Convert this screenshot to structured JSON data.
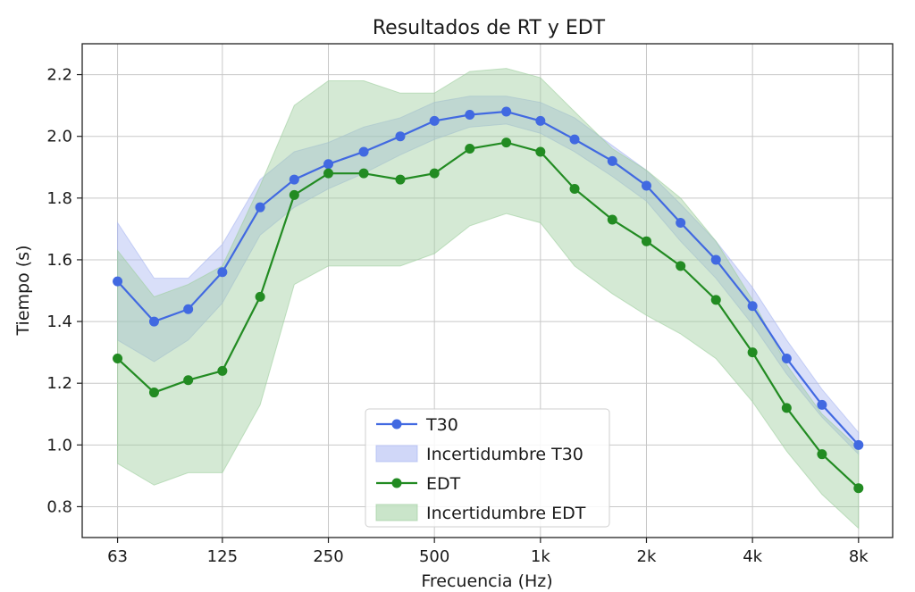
{
  "chart_data": {
    "type": "line",
    "title": "Resultados de RT y EDT",
    "xlabel": "Frecuencia (Hz)",
    "ylabel": "Tiempo (s)",
    "x_scale": "log2",
    "x_tick_labels": [
      "63",
      "125",
      "250",
      "500",
      "1k",
      "2k",
      "4k",
      "8k"
    ],
    "x_tick_values": [
      63,
      125,
      250,
      500,
      1000,
      2000,
      4000,
      8000
    ],
    "xlim": [
      50,
      10000
    ],
    "ylim": [
      0.7,
      2.3
    ],
    "y_ticks": [
      0.8,
      1.0,
      1.2,
      1.4,
      1.6,
      1.8,
      2.0,
      2.2
    ],
    "y_tick_labels": [
      "0.8",
      "1.0",
      "1.2",
      "1.4",
      "1.6",
      "1.8",
      "2.0",
      "2.2"
    ],
    "grid": true,
    "legend_position": "bottom-center",
    "x": [
      63,
      80,
      100,
      125,
      160,
      200,
      250,
      315,
      400,
      500,
      630,
      800,
      1000,
      1250,
      1600,
      2000,
      2500,
      3150,
      4000,
      5000,
      6300,
      8000
    ],
    "series": [
      {
        "name": "T30",
        "color": "#4169e1",
        "values": [
          1.53,
          1.4,
          1.44,
          1.56,
          1.77,
          1.86,
          1.91,
          1.95,
          2.0,
          2.05,
          2.07,
          2.08,
          2.05,
          1.99,
          1.92,
          1.84,
          1.72,
          1.6,
          1.45,
          1.28,
          1.13,
          1.0
        ]
      },
      {
        "name": "EDT",
        "color": "#228b22",
        "values": [
          1.28,
          1.17,
          1.21,
          1.24,
          1.48,
          1.81,
          1.88,
          1.88,
          1.86,
          1.88,
          1.96,
          1.98,
          1.95,
          1.83,
          1.73,
          1.66,
          1.58,
          1.47,
          1.3,
          1.12,
          0.97,
          0.86
        ]
      }
    ],
    "bands": [
      {
        "name": "Incertidumbre T30",
        "color": "#aab7f2",
        "lower": [
          1.34,
          1.27,
          1.34,
          1.46,
          1.68,
          1.77,
          1.83,
          1.88,
          1.94,
          1.99,
          2.03,
          2.04,
          2.01,
          1.95,
          1.87,
          1.79,
          1.66,
          1.54,
          1.39,
          1.23,
          1.09,
          0.97
        ],
        "upper": [
          1.72,
          1.54,
          1.54,
          1.65,
          1.86,
          1.95,
          1.98,
          2.03,
          2.06,
          2.11,
          2.13,
          2.13,
          2.11,
          2.06,
          1.97,
          1.89,
          1.78,
          1.66,
          1.51,
          1.34,
          1.18,
          1.04
        ]
      },
      {
        "name": "Incertidumbre EDT",
        "color": "#9fcf9f",
        "lower": [
          0.94,
          0.87,
          0.91,
          0.91,
          1.13,
          1.52,
          1.58,
          1.58,
          1.58,
          1.62,
          1.71,
          1.75,
          1.72,
          1.58,
          1.49,
          1.42,
          1.36,
          1.28,
          1.14,
          0.98,
          0.84,
          0.73
        ],
        "upper": [
          1.63,
          1.48,
          1.52,
          1.58,
          1.84,
          2.1,
          2.18,
          2.18,
          2.14,
          2.14,
          2.21,
          2.22,
          2.19,
          2.08,
          1.96,
          1.89,
          1.8,
          1.66,
          1.47,
          1.26,
          1.1,
          0.99
        ]
      }
    ],
    "legend": [
      {
        "label": "T30",
        "kind": "line",
        "color": "#4169e1"
      },
      {
        "label": "Incertidumbre T30",
        "kind": "band",
        "color": "#aab7f2"
      },
      {
        "label": "EDT",
        "kind": "line",
        "color": "#228b22"
      },
      {
        "label": "Incertidumbre EDT",
        "kind": "band",
        "color": "#9fcf9f"
      }
    ]
  }
}
